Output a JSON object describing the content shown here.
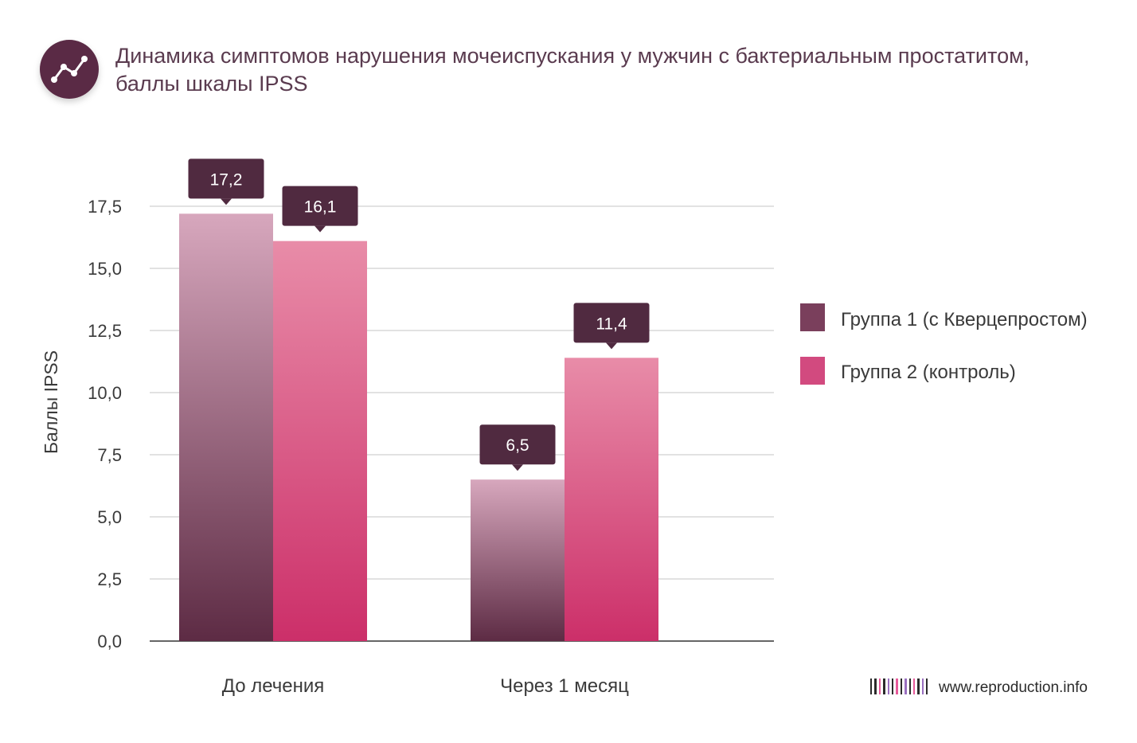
{
  "header": {
    "title_line1": "Динамика симптомов нарушения мочеиспускания у мужчин с бактериальным простатитом,",
    "title_line2": "баллы шкалы IPSS",
    "icon": "line-chart-icon"
  },
  "chart_data": {
    "type": "bar",
    "title": "Динамика симптомов нарушения мочеиспускания у мужчин с бактериальным простатитом, баллы шкалы IPSS",
    "xlabel": "",
    "ylabel": "Баллы IPSS",
    "categories": [
      "До лечения",
      "Через 1 месяц"
    ],
    "series": [
      {
        "name": "Группа 1 (с Кверцепростом)",
        "values": [
          17.2,
          6.5
        ],
        "labels": [
          "17,2",
          "6,5"
        ],
        "color": "#7a3f5c"
      },
      {
        "name": "Группа 2 (контроль)",
        "values": [
          16.1,
          11.4
        ],
        "labels": [
          "16,1",
          "11,4"
        ],
        "color": "#d24a7f"
      }
    ],
    "ylim": [
      0,
      17.5
    ],
    "yticks": [
      0,
      2.5,
      5,
      7.5,
      10,
      12.5,
      15,
      17.5
    ],
    "ytick_labels": [
      "0,0",
      "2,5",
      "5,0",
      "7,5",
      "10,0",
      "12,5",
      "15,0",
      "17,5"
    ],
    "grid": true,
    "legend_position": "right"
  },
  "footer": {
    "url": "www.reproduction.info",
    "logo": "barcode-logo-icon"
  },
  "colors": {
    "callout_bg": "#502a40",
    "grid": "#d9d9d9",
    "axis": "#666666"
  }
}
